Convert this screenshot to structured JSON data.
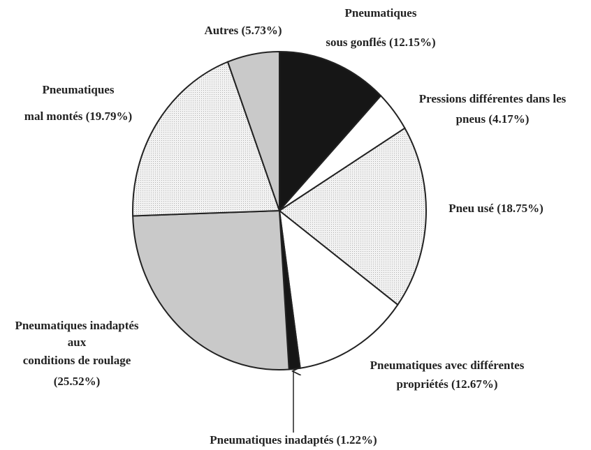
{
  "chart_data": {
    "type": "pie",
    "categories": [
      [
        "Pneumatiques",
        "sous gonflés"
      ],
      [
        "Pressions différentes dans les",
        "pneus"
      ],
      [
        "Pneu usé"
      ],
      [
        "Pneumatiques avec différentes",
        "propriétés"
      ],
      [
        "Pneumatiques inadaptés"
      ],
      [
        "Pneumatiques inadaptés",
        "aux",
        "conditions de roulage"
      ],
      [
        "Pneumatiques",
        "mal montés"
      ],
      [
        "Autres"
      ]
    ],
    "values": [
      12.15,
      4.17,
      18.75,
      12.67,
      1.22,
      25.52,
      19.79,
      5.73
    ],
    "value_labels": [
      "(12.15%)",
      "(4.17%)",
      "(18.75%)",
      "(12.67%)",
      "(1.22%)",
      "(25.52%)",
      "(19.79%)",
      "(5.73%)"
    ],
    "colors": [
      "#161616",
      "#ffffff",
      "dots",
      "#ffffff",
      "#161616",
      "#c9c9c9",
      "dots",
      "#c9c9c9"
    ]
  }
}
